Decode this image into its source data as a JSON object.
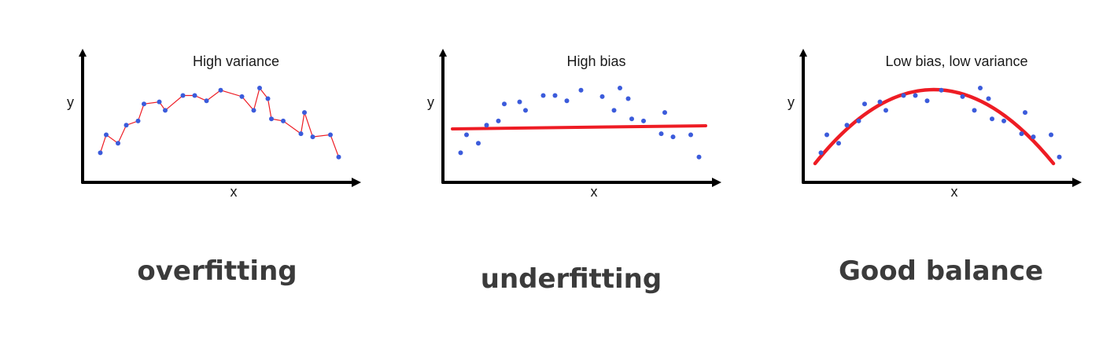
{
  "panels": [
    {
      "id": "overfit",
      "title": "High variance",
      "xlabel": "x",
      "ylabel": "y",
      "caption": "overfitting",
      "fit": "connect"
    },
    {
      "id": "underfit",
      "title": "High bias",
      "xlabel": "x",
      "ylabel": "y",
      "caption": "underfitting",
      "fit": "line"
    },
    {
      "id": "balanced",
      "title": "Low bias, low variance",
      "xlabel": "x",
      "ylabel": "y",
      "caption": "Good balance",
      "fit": "curve"
    }
  ],
  "colors": {
    "points": "#3b5bdb",
    "fit": "#ee1c24",
    "axes": "#000000",
    "caption": "#3b3b3b"
  },
  "chart_data": [
    {
      "type": "scatter",
      "title": "High variance",
      "xlabel": "x",
      "ylabel": "y",
      "fit": "piecewise line through every point",
      "points": [
        [
          0.5,
          1.6
        ],
        [
          1,
          3.3
        ],
        [
          2,
          2.5
        ],
        [
          2.7,
          4.2
        ],
        [
          3.7,
          4.6
        ],
        [
          4.2,
          6.2
        ],
        [
          5.5,
          6.4
        ],
        [
          6,
          5.6
        ],
        [
          7.5,
          7.0
        ],
        [
          8.5,
          7.0
        ],
        [
          9.5,
          6.5
        ],
        [
          10.7,
          7.5
        ],
        [
          12.5,
          6.9
        ],
        [
          13.5,
          5.6
        ],
        [
          14,
          7.7
        ],
        [
          14.7,
          6.7
        ],
        [
          15,
          4.8
        ],
        [
          16,
          4.6
        ],
        [
          17.5,
          3.4
        ],
        [
          17.8,
          5.4
        ],
        [
          18.5,
          3.1
        ],
        [
          20,
          3.3
        ],
        [
          20.7,
          1.2
        ]
      ]
    },
    {
      "type": "scatter",
      "title": "High bias",
      "xlabel": "x",
      "ylabel": "y",
      "fit": "straight line",
      "points": [
        [
          0.5,
          1.6
        ],
        [
          1,
          3.3
        ],
        [
          2,
          2.5
        ],
        [
          2.7,
          4.2
        ],
        [
          3.7,
          4.6
        ],
        [
          4.2,
          6.2
        ],
        [
          5.5,
          6.4
        ],
        [
          6,
          5.6
        ],
        [
          7.5,
          7.0
        ],
        [
          8.5,
          7.0
        ],
        [
          9.5,
          6.5
        ],
        [
          10.7,
          7.5
        ],
        [
          12.5,
          6.9
        ],
        [
          13.5,
          5.6
        ],
        [
          14,
          7.7
        ],
        [
          14.7,
          6.7
        ],
        [
          15,
          4.8
        ],
        [
          16,
          4.6
        ],
        [
          17.5,
          3.4
        ],
        [
          17.8,
          5.4
        ],
        [
          18.5,
          3.1
        ],
        [
          20,
          3.3
        ],
        [
          20.7,
          1.2
        ]
      ]
    },
    {
      "type": "scatter",
      "title": "Low bias, low variance",
      "xlabel": "x",
      "ylabel": "y",
      "fit": "smooth curve",
      "points": [
        [
          0.5,
          1.6
        ],
        [
          1,
          3.3
        ],
        [
          2,
          2.5
        ],
        [
          2.7,
          4.2
        ],
        [
          3.7,
          4.6
        ],
        [
          4.2,
          6.2
        ],
        [
          5.5,
          6.4
        ],
        [
          6,
          5.6
        ],
        [
          7.5,
          7.0
        ],
        [
          8.5,
          7.0
        ],
        [
          9.5,
          6.5
        ],
        [
          10.7,
          7.5
        ],
        [
          12.5,
          6.9
        ],
        [
          13.5,
          5.6
        ],
        [
          14,
          7.7
        ],
        [
          14.7,
          6.7
        ],
        [
          15,
          4.8
        ],
        [
          16,
          4.6
        ],
        [
          17.5,
          3.4
        ],
        [
          17.8,
          5.4
        ],
        [
          18.5,
          3.1
        ],
        [
          20,
          3.3
        ],
        [
          20.7,
          1.2
        ]
      ]
    }
  ]
}
